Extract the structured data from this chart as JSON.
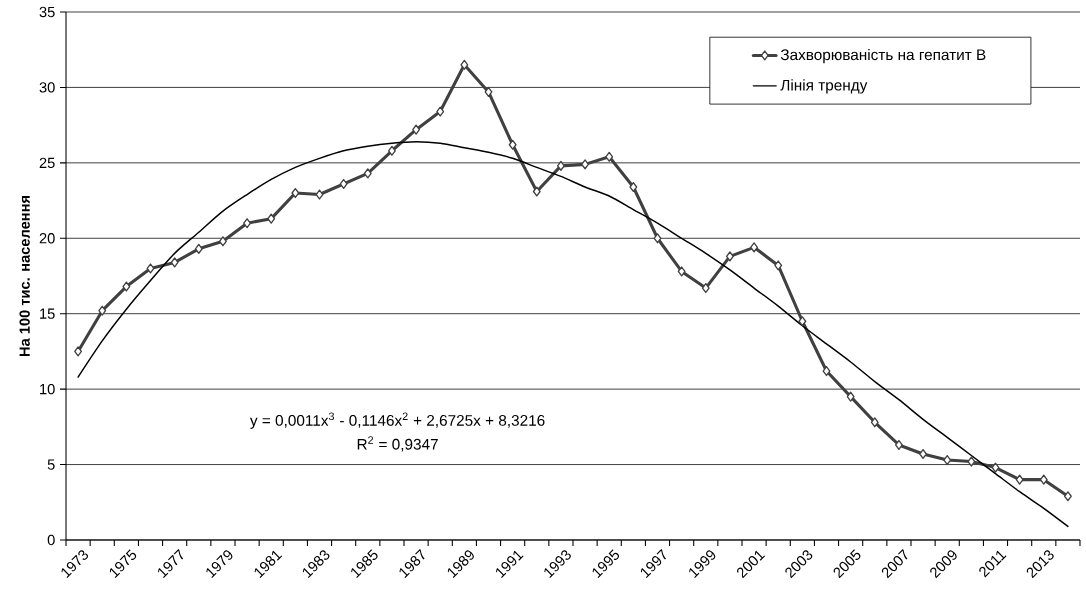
{
  "chart_data": {
    "type": "line",
    "ylabel": "На 100 тис. населення",
    "categories": [
      "1973",
      null,
      "1975",
      null,
      "1977",
      null,
      "1979",
      null,
      "1981",
      null,
      "1983",
      null,
      "1985",
      null,
      "1987",
      null,
      "1989",
      null,
      "1991",
      null,
      "1993",
      null,
      "1995",
      null,
      "1997",
      null,
      "1999",
      null,
      "2001",
      null,
      "2003",
      null,
      "2005",
      null,
      "2007",
      null,
      "2009",
      null,
      "2011",
      null,
      "2013",
      null
    ],
    "series": [
      {
        "name": "Захворюваність на гепатит В",
        "color": "#404040",
        "marker": "diamond",
        "values": [
          12.5,
          15.2,
          16.8,
          18.0,
          18.4,
          19.3,
          19.8,
          21.0,
          21.3,
          23.0,
          22.9,
          23.6,
          24.3,
          25.8,
          27.2,
          28.4,
          31.5,
          29.7,
          26.2,
          23.1,
          24.8,
          24.9,
          25.4,
          23.4,
          20.0,
          17.8,
          16.7,
          18.8,
          19.4,
          18.2,
          14.5,
          11.2,
          9.5,
          7.8,
          6.3,
          5.7,
          5.3,
          5.2,
          4.8,
          4.0,
          4.0,
          2.9
        ]
      },
      {
        "name": "Лінія тренду",
        "color": "#000000",
        "marker": "none",
        "values": [
          10.8,
          13.2,
          15.3,
          17.2,
          19.0,
          20.4,
          21.8,
          22.9,
          23.9,
          24.7,
          25.3,
          25.8,
          26.1,
          26.3,
          26.4,
          26.3,
          26.0,
          25.7,
          25.3,
          24.7,
          24.1,
          23.4,
          22.8,
          21.9,
          21.0,
          20.0,
          19.0,
          17.9,
          16.7,
          15.5,
          14.2,
          13.0,
          11.8,
          10.5,
          9.3,
          8.0,
          6.8,
          5.6,
          4.4,
          3.2,
          2.1,
          0.9
        ]
      }
    ],
    "ylim": [
      0,
      35
    ],
    "yticks": [
      0,
      5,
      10,
      15,
      20,
      25,
      30,
      35
    ],
    "grid": "y",
    "legend": "top right",
    "annotations": [
      "y = 0,0011x$^{3}$ - 0,1146x$^{2}$ + 2,6725x + 8,3216",
      "R$^{2}$ = 0,9347"
    ]
  }
}
